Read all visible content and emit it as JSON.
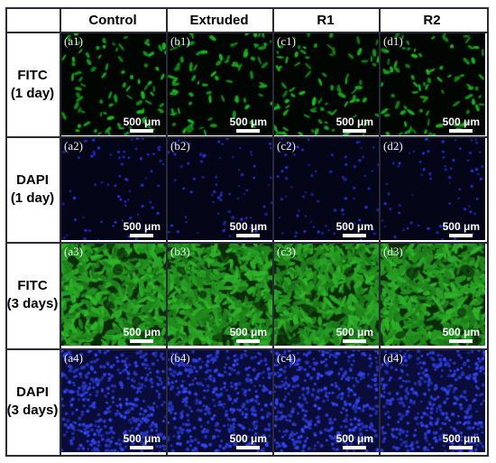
{
  "columns": [
    {
      "label": "Control"
    },
    {
      "label": "Extruded"
    },
    {
      "label": "R1"
    },
    {
      "label": "R2"
    }
  ],
  "rows": [
    {
      "line1": "FITC",
      "line2": "(1 day)",
      "stain": "FITC",
      "channel_color": "#19c21f",
      "background": "#020602",
      "density": "sparse",
      "panels": [
        {
          "label": "(a1)",
          "scale": "500 μm"
        },
        {
          "label": "(b1)",
          "scale": "500 μm"
        },
        {
          "label": "(c1)",
          "scale": "500 μm"
        },
        {
          "label": "(d1)",
          "scale": "500 μm"
        }
      ]
    },
    {
      "line1": "DAPI",
      "line2": "(1 day)",
      "stain": "DAPI",
      "channel_color": "#2a3cff",
      "background": "#050518",
      "density": "sparse",
      "panels": [
        {
          "label": "(a2)",
          "scale": "500 μm"
        },
        {
          "label": "(b2)",
          "scale": "500 μm"
        },
        {
          "label": "(c2)",
          "scale": "500 μm"
        },
        {
          "label": "(d2)",
          "scale": "500 μm"
        }
      ]
    },
    {
      "line1": "FITC",
      "line2": "(3 days)",
      "stain": "FITC",
      "channel_color": "#2fb82a",
      "background": "#0b2a08",
      "density": "dense",
      "panels": [
        {
          "label": "(a3)",
          "scale": "500 μm"
        },
        {
          "label": "(b3)",
          "scale": "500 μm"
        },
        {
          "label": "(c3)",
          "scale": "500 μm"
        },
        {
          "label": "(d3)",
          "scale": "500 μm"
        }
      ]
    },
    {
      "line1": "DAPI",
      "line2": "(3 days)",
      "stain": "DAPI",
      "channel_color": "#3448ff",
      "background": "#0a0c3a",
      "density": "dense",
      "panels": [
        {
          "label": "(a4)",
          "scale": "500 μm"
        },
        {
          "label": "(b4)",
          "scale": "500 μm"
        },
        {
          "label": "(c4)",
          "scale": "500 μm"
        },
        {
          "label": "(d4)",
          "scale": "500 μm"
        }
      ]
    }
  ]
}
